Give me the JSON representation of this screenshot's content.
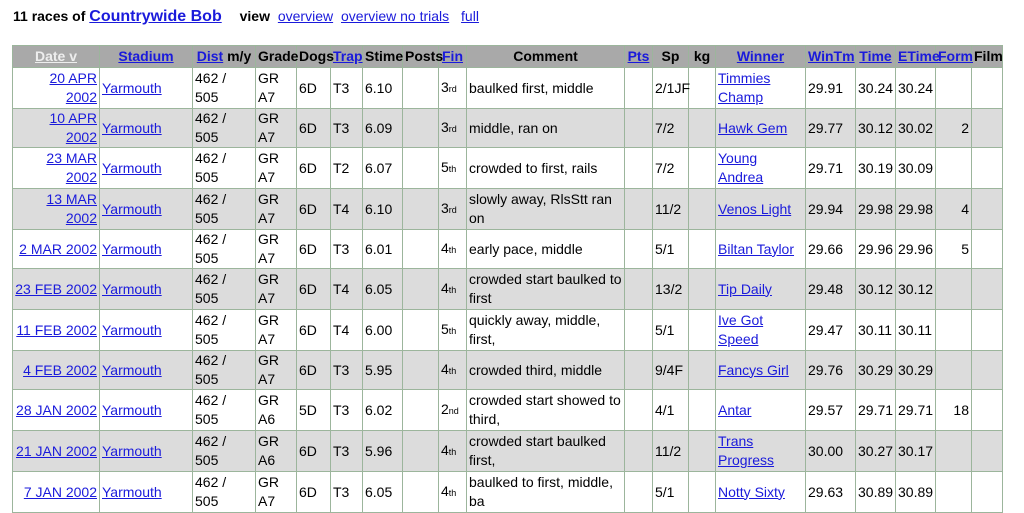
{
  "header": {
    "count_text": "11 races of",
    "dog": "Countrywide Bob",
    "view_label": "view",
    "links": [
      "overview",
      "overview no trials",
      "full"
    ]
  },
  "columns": [
    "Date v",
    "Stadium",
    "Dist",
    "m/y",
    "Grade",
    "Dogs",
    "Trap",
    "Stime",
    "Posts",
    "Fin",
    "Comment",
    "Pts",
    "Sp",
    "kg",
    "Winner",
    "WinTm",
    "Time",
    "ETime",
    "Form",
    "Film"
  ],
  "rows": [
    {
      "date": "20 APR 2002",
      "stadium": "Yarmouth",
      "dist": "462 / 505",
      "grade": "GR A7",
      "dogs": "6D",
      "trap": "T3",
      "stime": "6.10",
      "posts": "",
      "fin": "3",
      "fin_sfx": "rd",
      "comment": "baulked first, middle",
      "pts": "",
      "sp": "2/1JF",
      "kg": "",
      "winner": "Timmies Champ",
      "wintm": "29.91",
      "time": "30.24",
      "etime": "30.24",
      "form": "",
      "film": ""
    },
    {
      "date": "10 APR 2002",
      "stadium": "Yarmouth",
      "dist": "462 / 505",
      "grade": "GR A7",
      "dogs": "6D",
      "trap": "T3",
      "stime": "6.09",
      "posts": "",
      "fin": "3",
      "fin_sfx": "rd",
      "comment": "middle, ran on",
      "pts": "",
      "sp": "7/2",
      "kg": "",
      "winner": "Hawk Gem",
      "wintm": "29.77",
      "time": "30.12",
      "etime": "30.02",
      "form": "2",
      "film": ""
    },
    {
      "date": "23 MAR 2002",
      "stadium": "Yarmouth",
      "dist": "462 / 505",
      "grade": "GR A7",
      "dogs": "6D",
      "trap": "T2",
      "stime": "6.07",
      "posts": "",
      "fin": "5",
      "fin_sfx": "th",
      "comment": "crowded to first, rails",
      "pts": "",
      "sp": "7/2",
      "kg": "",
      "winner": "Young Andrea",
      "wintm": "29.71",
      "time": "30.19",
      "etime": "30.09",
      "form": "",
      "film": ""
    },
    {
      "date": "13 MAR 2002",
      "stadium": "Yarmouth",
      "dist": "462 / 505",
      "grade": "GR A7",
      "dogs": "6D",
      "trap": "T4",
      "stime": "6.10",
      "posts": "",
      "fin": "3",
      "fin_sfx": "rd",
      "comment": "slowly away, RlsStt ran on",
      "pts": "",
      "sp": "11/2",
      "kg": "",
      "winner": "Venos Light",
      "wintm": "29.94",
      "time": "29.98",
      "etime": "29.98",
      "form": "4",
      "film": ""
    },
    {
      "date": "2 MAR 2002",
      "stadium": "Yarmouth",
      "dist": "462 / 505",
      "grade": "GR A7",
      "dogs": "6D",
      "trap": "T3",
      "stime": "6.01",
      "posts": "",
      "fin": "4",
      "fin_sfx": "th",
      "comment": "early pace, middle",
      "pts": "",
      "sp": "5/1",
      "kg": "",
      "winner": "Biltan Taylor",
      "wintm": "29.66",
      "time": "29.96",
      "etime": "29.96",
      "form": "5",
      "film": ""
    },
    {
      "date": "23 FEB 2002",
      "stadium": "Yarmouth",
      "dist": "462 / 505",
      "grade": "GR A7",
      "dogs": "6D",
      "trap": "T4",
      "stime": "6.05",
      "posts": "",
      "fin": "4",
      "fin_sfx": "th",
      "comment": "crowded start baulked to first",
      "pts": "",
      "sp": "13/2",
      "kg": "",
      "winner": "Tip Daily",
      "wintm": "29.48",
      "time": "30.12",
      "etime": "30.12",
      "form": "",
      "film": ""
    },
    {
      "date": "11 FEB 2002",
      "stadium": "Yarmouth",
      "dist": "462 / 505",
      "grade": "GR A7",
      "dogs": "6D",
      "trap": "T4",
      "stime": "6.00",
      "posts": "",
      "fin": "5",
      "fin_sfx": "th",
      "comment": "quickly away, middle, first,",
      "pts": "",
      "sp": "5/1",
      "kg": "",
      "winner": "Ive Got Speed",
      "wintm": "29.47",
      "time": "30.11",
      "etime": "30.11",
      "form": "",
      "film": ""
    },
    {
      "date": "4 FEB 2002",
      "stadium": "Yarmouth",
      "dist": "462 / 505",
      "grade": "GR A7",
      "dogs": "6D",
      "trap": "T3",
      "stime": "5.95",
      "posts": "",
      "fin": "4",
      "fin_sfx": "th",
      "comment": "crowded third, middle",
      "pts": "",
      "sp": "9/4F",
      "kg": "",
      "winner": "Fancys Girl",
      "wintm": "29.76",
      "time": "30.29",
      "etime": "30.29",
      "form": "",
      "film": ""
    },
    {
      "date": "28 JAN 2002",
      "stadium": "Yarmouth",
      "dist": "462 / 505",
      "grade": "GR A6",
      "dogs": "5D",
      "trap": "T3",
      "stime": "6.02",
      "posts": "",
      "fin": "2",
      "fin_sfx": "nd",
      "comment": "crowded start showed to third,",
      "pts": "",
      "sp": "4/1",
      "kg": "",
      "winner": "Antar",
      "wintm": "29.57",
      "time": "29.71",
      "etime": "29.71",
      "form": "18",
      "film": ""
    },
    {
      "date": "21 JAN 2002",
      "stadium": "Yarmouth",
      "dist": "462 / 505",
      "grade": "GR A6",
      "dogs": "6D",
      "trap": "T3",
      "stime": "5.96",
      "posts": "",
      "fin": "4",
      "fin_sfx": "th",
      "comment": "crowded start baulked first,",
      "pts": "",
      "sp": "11/2",
      "kg": "",
      "winner": "Trans Progress",
      "wintm": "30.00",
      "time": "30.27",
      "etime": "30.17",
      "form": "",
      "film": ""
    },
    {
      "date": "7 JAN 2002",
      "stadium": "Yarmouth",
      "dist": "462 / 505",
      "grade": "GR A7",
      "dogs": "6D",
      "trap": "T3",
      "stime": "6.05",
      "posts": "",
      "fin": "4",
      "fin_sfx": "th",
      "comment": "baulked to first, middle, ba",
      "pts": "",
      "sp": "5/1",
      "kg": "",
      "winner": "Notty Sixty",
      "wintm": "29.63",
      "time": "30.89",
      "etime": "30.89",
      "form": "",
      "film": ""
    }
  ],
  "colors": {
    "link": "#1a1adb",
    "header_bg": "#a9a9a9",
    "alt_row": "#dcdcdc",
    "border": "#9cb59c"
  }
}
